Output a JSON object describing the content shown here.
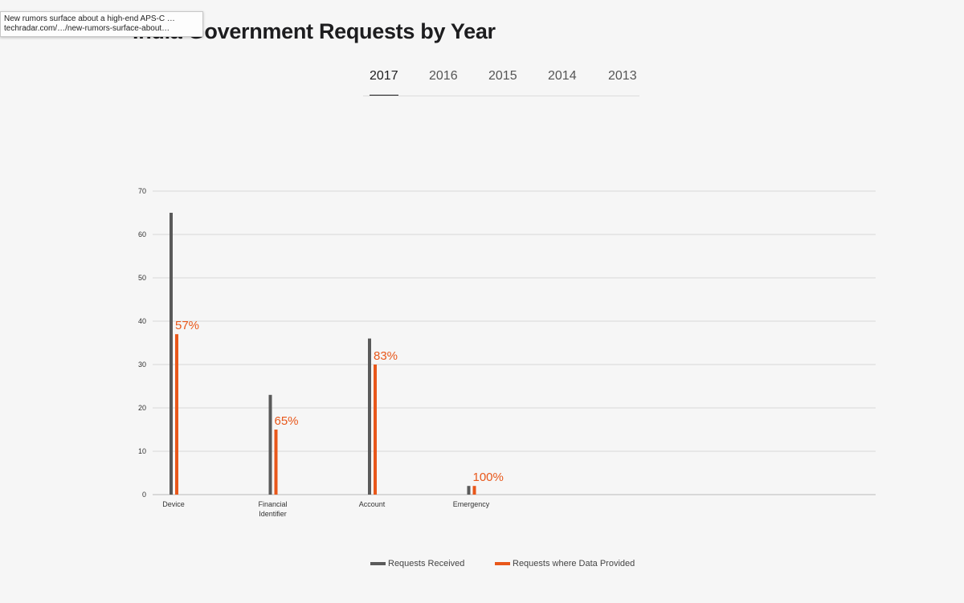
{
  "tooltip": {
    "title": "New rumors surface about a high-end APS-C …",
    "url": "techradar.com/…/new-rumors-surface-about…"
  },
  "heading": "India Government Requests by Year",
  "tabs": {
    "items": [
      "2017",
      "2016",
      "2015",
      "2014",
      "2013"
    ],
    "selected_index": 0
  },
  "chart_data": {
    "type": "bar",
    "categories": [
      "Device",
      "Financial Identifier",
      "Account",
      "Emergency"
    ],
    "series": [
      {
        "name": "Requests Received",
        "color": "#5a5a5a",
        "values": [
          65,
          23,
          36,
          2
        ]
      },
      {
        "name": "Requests where Data Provided",
        "color": "#e8571a",
        "values": [
          37,
          15,
          30,
          2
        ],
        "labels": [
          "57%",
          "65%",
          "83%",
          "100%"
        ]
      }
    ],
    "ylim": [
      0,
      70
    ],
    "yticks": [
      0,
      10,
      20,
      30,
      40,
      50,
      60,
      70
    ],
    "grid": true,
    "legend": "bottom"
  }
}
